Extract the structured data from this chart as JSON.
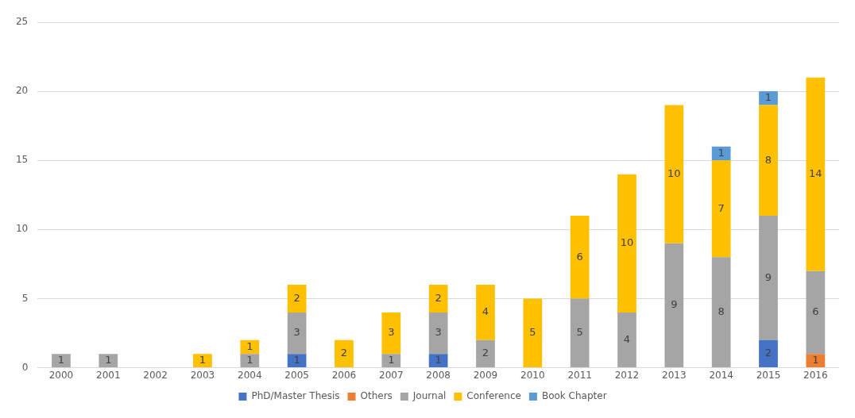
{
  "chart_data": {
    "type": "bar",
    "stacked": true,
    "categories": [
      "2000",
      "2001",
      "2002",
      "2003",
      "2004",
      "2005",
      "2006",
      "2007",
      "2008",
      "2009",
      "2010",
      "2011",
      "2012",
      "2013",
      "2014",
      "2015",
      "2016"
    ],
    "series": [
      {
        "name": "PhD/Master Thesis",
        "color": "#4472c4",
        "values": [
          null,
          null,
          null,
          null,
          null,
          1,
          null,
          null,
          1,
          null,
          null,
          null,
          null,
          null,
          null,
          2,
          null
        ]
      },
      {
        "name": "Others",
        "color": "#ed7d31",
        "values": [
          null,
          null,
          null,
          null,
          null,
          null,
          null,
          null,
          null,
          null,
          null,
          null,
          null,
          null,
          null,
          null,
          1
        ]
      },
      {
        "name": "Journal",
        "color": "#a5a5a5",
        "values": [
          1,
          1,
          null,
          null,
          1,
          3,
          null,
          1,
          3,
          2,
          null,
          5,
          4,
          9,
          8,
          9,
          6
        ]
      },
      {
        "name": "Conference",
        "color": "#ffc000",
        "values": [
          null,
          null,
          null,
          1,
          1,
          2,
          2,
          3,
          2,
          4,
          5,
          6,
          10,
          10,
          7,
          8,
          14
        ]
      },
      {
        "name": "Book Chapter",
        "color": "#5b9bd5",
        "values": [
          null,
          null,
          null,
          null,
          null,
          null,
          null,
          null,
          null,
          null,
          null,
          null,
          null,
          null,
          1,
          1,
          null
        ]
      }
    ],
    "ylim": [
      0,
      25
    ],
    "yticks": [
      0,
      5,
      10,
      15,
      20,
      25
    ],
    "grid": "y",
    "legend": "bottom",
    "data_labels": true
  }
}
